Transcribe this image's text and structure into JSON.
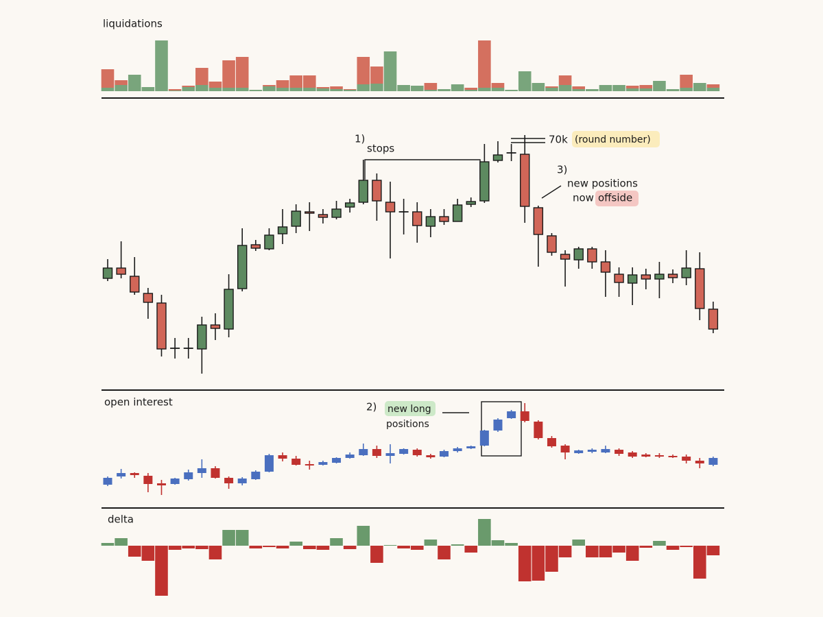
{
  "chart_data": [
    {
      "type": "bar",
      "title": "liquidations",
      "series": [
        {
          "color": "#79a57c",
          "values": [
            5,
            9,
            24,
            6,
            74,
            1,
            6,
            9,
            5,
            5,
            5,
            2,
            7,
            5,
            5,
            5,
            4,
            3,
            2,
            10,
            11,
            58,
            9,
            8,
            2,
            3,
            10,
            2,
            5,
            5,
            2,
            29,
            12,
            5,
            9,
            3,
            3,
            9,
            9,
            4,
            4,
            15,
            3,
            5,
            12,
            5
          ]
        },
        {
          "color": "#d4705f",
          "values": [
            27,
            7,
            0,
            0,
            0,
            2,
            2,
            25,
            9,
            40,
            45,
            0,
            2,
            11,
            18,
            18,
            2,
            4,
            1,
            40,
            25,
            0,
            0,
            0,
            10,
            0,
            0,
            3,
            69,
            7,
            0,
            0,
            0,
            2,
            14,
            4,
            0,
            0,
            0,
            4,
            5,
            0,
            0,
            19,
            0,
            5
          ]
        }
      ],
      "ylim": [
        0,
        75
      ]
    },
    {
      "type": "candlestick",
      "open": [
        61.88,
        62.48,
        62.0,
        61.0,
        60.44,
        57.8,
        57.8,
        57.76,
        59.16,
        58.92,
        61.28,
        63.84,
        63.6,
        64.48,
        64.92,
        65.76,
        65.6,
        65.44,
        66.04,
        66.32,
        67.6,
        66.32,
        65.76,
        65.76,
        64.92,
        65.48,
        65.2,
        66.2,
        66.4,
        68.76,
        69.2,
        69.12,
        66.0,
        64.36,
        63.28,
        62.96,
        63.6,
        62.84,
        62.12,
        61.6,
        62.08,
        61.84,
        62.12,
        61.92,
        62.44,
        60.08
      ],
      "high": [
        63.0,
        64.04,
        63.12,
        61.32,
        60.92,
        58.4,
        58.4,
        59.64,
        59.84,
        62.12,
        64.8,
        64.12,
        64.8,
        65.92,
        66.2,
        66.32,
        65.92,
        66.4,
        66.52,
        68.8,
        68.0,
        67.52,
        66.52,
        66.32,
        65.92,
        65.92,
        66.52,
        66.6,
        69.72,
        69.88,
        69.72,
        70.24,
        66.12,
        64.52,
        63.52,
        63.72,
        63.72,
        63.52,
        62.52,
        62.52,
        62.44,
        62.84,
        62.4,
        63.52,
        63.4,
        60.52
      ],
      "low": [
        61.72,
        61.88,
        60.92,
        59.52,
        57.32,
        57.2,
        57.2,
        56.32,
        58.28,
        58.44,
        61.12,
        63.48,
        63.52,
        63.88,
        64.52,
        64.64,
        65.08,
        65.32,
        65.72,
        66.2,
        65.24,
        63.04,
        64.44,
        63.96,
        64.28,
        65.0,
        65.2,
        66.04,
        66.28,
        68.64,
        68.72,
        65.12,
        62.56,
        63.2,
        61.4,
        62.44,
        62.44,
        60.8,
        60.8,
        60.32,
        61.24,
        60.72,
        61.6,
        61.48,
        59.44,
        58.68
      ],
      "close": [
        62.48,
        62.12,
        61.08,
        60.48,
        57.76,
        57.8,
        57.8,
        59.16,
        58.96,
        61.24,
        63.8,
        63.64,
        64.4,
        64.88,
        65.8,
        65.68,
        65.44,
        65.92,
        66.28,
        67.6,
        66.4,
        65.76,
        65.76,
        64.96,
        65.48,
        65.2,
        66.16,
        66.36,
        68.68,
        69.08,
        69.2,
        66.08,
        64.44,
        63.4,
        63.0,
        63.6,
        62.84,
        62.24,
        61.64,
        62.08,
        61.84,
        62.12,
        61.92,
        62.48,
        60.12,
        58.92
      ],
      "up_color": "#5d8a60",
      "down_color": "#d16658",
      "flat_color": "#1a1a1a",
      "outline_color": "#1a1a1a",
      "ylim": [
        55.5,
        71.5
      ],
      "annotations": [
        "1)",
        "stops",
        "70k",
        "(round number)",
        "3)",
        "new positions",
        "now",
        "offside"
      ]
    },
    {
      "type": "candlestick",
      "title": "open interest",
      "open": [
        3.3,
        4.5,
        5.0,
        4.6,
        3.5,
        3.4,
        4.1,
        5.0,
        5.7,
        4.3,
        3.5,
        4.1,
        5.2,
        7.6,
        7.1,
        6.3,
        6.2,
        6.5,
        7.2,
        7.6,
        8.5,
        7.5,
        7.8,
        8.4,
        7.6,
        7.4,
        8.2,
        8.6,
        9.0,
        11.2,
        13.0,
        14.0,
        12.5,
        10.1,
        9.0,
        7.9,
        8.1,
        8.0,
        8.4,
        8.0,
        7.7,
        7.6,
        7.5,
        7.4,
        6.8,
        6.2
      ],
      "high": [
        4.5,
        5.6,
        5.1,
        5.0,
        4.0,
        4.3,
        5.5,
        7.0,
        6.0,
        4.5,
        4.4,
        5.4,
        7.8,
        8.0,
        7.5,
        6.8,
        6.8,
        7.3,
        8.0,
        9.3,
        9.0,
        9.2,
        8.6,
        8.6,
        7.8,
        8.4,
        8.8,
        9.0,
        11.3,
        13.0,
        14.2,
        15.2,
        12.7,
        10.4,
        9.2,
        8.4,
        8.6,
        9.0,
        8.6,
        8.2,
        7.9,
        7.9,
        7.7,
        7.7,
        7.2,
        7.4
      ],
      "low": [
        3.1,
        4.2,
        4.3,
        2.2,
        1.8,
        3.3,
        3.9,
        4.3,
        4.2,
        2.7,
        3.2,
        4.0,
        5.1,
        6.7,
        6.1,
        5.5,
        6.1,
        6.4,
        7.1,
        7.5,
        7.2,
        6.4,
        7.7,
        7.4,
        7.1,
        7.3,
        8.0,
        8.5,
        8.9,
        11.0,
        12.9,
        12.4,
        9.9,
        8.7,
        7.0,
        7.8,
        7.9,
        7.9,
        7.5,
        7.2,
        7.3,
        7.2,
        7.2,
        6.4,
        5.7,
        6.0
      ],
      "close": [
        4.3,
        5.0,
        4.7,
        3.4,
        3.2,
        4.2,
        5.1,
        5.7,
        4.3,
        3.5,
        4.2,
        5.2,
        7.6,
        7.1,
        6.2,
        6.1,
        6.6,
        7.2,
        7.7,
        8.5,
        7.5,
        7.9,
        8.5,
        7.6,
        7.3,
        8.2,
        8.6,
        8.9,
        11.2,
        12.8,
        14.0,
        12.6,
        10.1,
        8.9,
        8.0,
        8.3,
        8.4,
        8.5,
        7.8,
        7.4,
        7.4,
        7.4,
        7.3,
        6.8,
        6.4,
        7.2
      ],
      "up_color": "#4a6fbf",
      "down_color": "#c0322f",
      "flat_color": "#1a1a1a",
      "ylim": [
        0,
        16
      ],
      "annotations": [
        "2)",
        "new long",
        "positions"
      ]
    },
    {
      "type": "bar",
      "title": "delta",
      "values": [
        0.4,
        1.1,
        -1.6,
        -2.2,
        -7.3,
        -0.6,
        -0.4,
        -0.5,
        -2.0,
        2.3,
        2.3,
        -0.4,
        -0.2,
        -0.4,
        0.6,
        -0.5,
        -0.6,
        1.1,
        -0.5,
        2.9,
        -2.5,
        0.1,
        -0.4,
        -0.6,
        0.9,
        -2.0,
        0.2,
        -1.0,
        3.9,
        0.8,
        0.4,
        -5.2,
        -5.1,
        -3.8,
        -1.7,
        0.9,
        -1.7,
        -1.7,
        -1.0,
        -2.2,
        -0.3,
        0.7,
        -0.6,
        -0.2,
        -4.8,
        -1.4
      ],
      "up_color": "#6a9a6c",
      "down_color": "#c0322f",
      "ylim": [
        -8,
        5
      ]
    }
  ]
}
